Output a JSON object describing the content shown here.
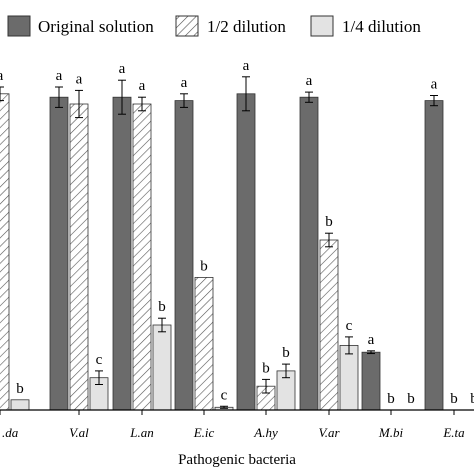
{
  "chart_data": {
    "type": "bar",
    "title": "",
    "xlabel": "Pathogenic bacteria",
    "ylabel": "",
    "categories": [
      "P.da",
      "V.al",
      "L.an",
      "E.ic",
      "A.hy",
      "V.ar",
      "M.bi",
      "E.ta"
    ],
    "category_labels_visible": [
      ".da",
      "V.al",
      "L.an",
      "E.ic",
      "A.hy",
      "V.ar",
      "M.bi",
      "E.ta"
    ],
    "ylim": [
      0,
      100
    ],
    "grid": false,
    "legend": "top",
    "series": [
      {
        "name": "Original solution",
        "fill": "#6b6b6b",
        "pattern": "solid",
        "values": [
          null,
          92,
          92,
          91,
          93,
          92,
          17,
          91
        ],
        "errors": [
          null,
          3,
          5,
          2,
          5,
          1.5,
          0.4,
          1.5
        ],
        "labels": [
          "",
          "a",
          "a",
          "a",
          "a",
          "a",
          "a",
          "a"
        ]
      },
      {
        "name": "1/2 dilution",
        "fill": "#ffffff",
        "pattern": "hatch",
        "values": [
          93,
          90,
          90,
          39,
          7,
          50,
          0,
          0
        ],
        "errors": [
          2,
          4,
          2,
          0,
          2,
          2,
          0,
          0
        ],
        "labels": [
          "a",
          "a",
          "a",
          "b",
          "b",
          "b",
          "b",
          "b"
        ]
      },
      {
        "name": "1/4 dilution",
        "fill": "#e3e3e3",
        "pattern": "solid",
        "values": [
          3,
          9.5,
          25,
          0.8,
          11.5,
          19,
          0,
          0
        ],
        "errors": [
          0,
          2,
          2,
          0.3,
          2,
          2.5,
          0,
          0
        ],
        "labels": [
          "b",
          "c",
          "b",
          "c",
          "b",
          "c",
          "b",
          "b"
        ]
      }
    ]
  },
  "legend": {
    "items": [
      {
        "label": "Original solution",
        "swatch": "solid-dark"
      },
      {
        "label": "1/2 dilution",
        "swatch": "hatch"
      },
      {
        "label": "1/4 dilution",
        "swatch": "solid-light"
      }
    ]
  }
}
